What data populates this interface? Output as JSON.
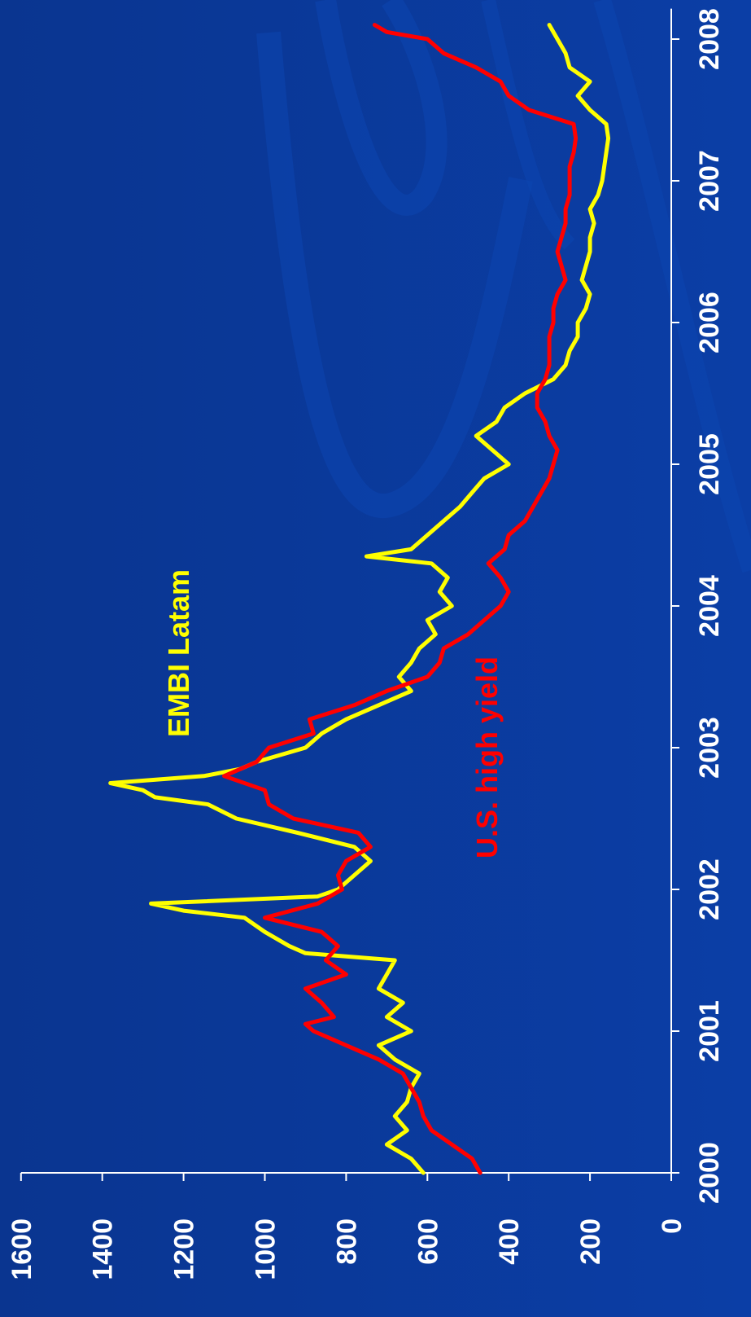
{
  "chart_data": {
    "type": "line",
    "x_ticks": [
      "2000",
      "2001",
      "2002",
      "2003",
      "2004",
      "2005",
      "2006",
      "2007",
      "2008"
    ],
    "y_ticks": [
      "0",
      "200",
      "400",
      "600",
      "800",
      "1000",
      "1200",
      "1400",
      "1600"
    ],
    "xlim": [
      2000,
      2008.1
    ],
    "ylim": [
      0,
      1600
    ],
    "grid": false,
    "orientation": "rotated-90-ccw",
    "colors": {
      "background": "#0b3a9a",
      "axis": "#ffffff",
      "embi": "#ffff00",
      "high_yield": "#ff0000"
    },
    "series": [
      {
        "name": "EMBI Latam",
        "color": "#ffff00",
        "x": [
          2000.0,
          2000.1,
          2000.2,
          2000.3,
          2000.4,
          2000.5,
          2000.6,
          2000.7,
          2000.8,
          2000.9,
          2001.0,
          2001.1,
          2001.2,
          2001.3,
          2001.4,
          2001.5,
          2001.55,
          2001.6,
          2001.7,
          2001.8,
          2001.85,
          2001.9,
          2001.95,
          2002.0,
          2002.1,
          2002.2,
          2002.3,
          2002.4,
          2002.5,
          2002.6,
          2002.65,
          2002.7,
          2002.75,
          2002.8,
          2002.85,
          2002.9,
          2003.0,
          2003.1,
          2003.2,
          2003.3,
          2003.4,
          2003.5,
          2003.6,
          2003.7,
          2003.8,
          2003.9,
          2004.0,
          2004.1,
          2004.2,
          2004.3,
          2004.35,
          2004.4,
          2004.5,
          2004.6,
          2004.7,
          2004.8,
          2004.9,
          2005.0,
          2005.1,
          2005.2,
          2005.3,
          2005.4,
          2005.5,
          2005.6,
          2005.7,
          2005.8,
          2005.9,
          2006.0,
          2006.1,
          2006.2,
          2006.3,
          2006.4,
          2006.5,
          2006.6,
          2006.7,
          2006.8,
          2006.9,
          2007.0,
          2007.1,
          2007.2,
          2007.3,
          2007.4,
          2007.5,
          2007.6,
          2007.7,
          2007.8,
          2007.9,
          2008.0,
          2008.1
        ],
        "values": [
          610,
          640,
          700,
          650,
          680,
          650,
          640,
          620,
          680,
          720,
          640,
          700,
          660,
          720,
          700,
          680,
          900,
          940,
          1000,
          1050,
          1200,
          1280,
          870,
          820,
          780,
          740,
          780,
          920,
          1070,
          1140,
          1270,
          1300,
          1380,
          1150,
          1060,
          1020,
          900,
          860,
          800,
          720,
          640,
          670,
          640,
          620,
          580,
          600,
          540,
          570,
          550,
          590,
          750,
          640,
          600,
          560,
          520,
          490,
          460,
          400,
          440,
          480,
          430,
          410,
          360,
          290,
          260,
          250,
          230,
          230,
          210,
          200,
          220,
          210,
          200,
          200,
          190,
          200,
          180,
          170,
          165,
          160,
          155,
          160,
          200,
          230,
          200,
          250,
          260,
          280,
          300
        ]
      },
      {
        "name": "U.S. high yield",
        "color": "#ff0000",
        "x": [
          2000.0,
          2000.1,
          2000.2,
          2000.3,
          2000.4,
          2000.5,
          2000.6,
          2000.7,
          2000.8,
          2000.9,
          2001.0,
          2001.05,
          2001.1,
          2001.2,
          2001.3,
          2001.4,
          2001.5,
          2001.6,
          2001.7,
          2001.8,
          2001.9,
          2002.0,
          2002.1,
          2002.2,
          2002.3,
          2002.4,
          2002.5,
          2002.6,
          2002.7,
          2002.8,
          2002.9,
          2003.0,
          2003.1,
          2003.2,
          2003.3,
          2003.4,
          2003.5,
          2003.6,
          2003.7,
          2003.8,
          2003.9,
          2004.0,
          2004.1,
          2004.2,
          2004.3,
          2004.4,
          2004.5,
          2004.6,
          2004.7,
          2004.8,
          2004.9,
          2005.0,
          2005.1,
          2005.2,
          2005.3,
          2005.4,
          2005.5,
          2005.6,
          2005.7,
          2005.8,
          2005.9,
          2006.0,
          2006.1,
          2006.2,
          2006.3,
          2006.4,
          2006.5,
          2006.6,
          2006.7,
          2006.8,
          2006.9,
          2007.0,
          2007.1,
          2007.2,
          2007.3,
          2007.4,
          2007.5,
          2007.6,
          2007.7,
          2007.8,
          2007.9,
          2008.0,
          2008.05,
          2008.1
        ],
        "values": [
          470,
          490,
          540,
          590,
          610,
          620,
          640,
          660,
          720,
          800,
          880,
          900,
          830,
          860,
          900,
          800,
          850,
          820,
          860,
          1000,
          870,
          810,
          820,
          800,
          740,
          770,
          930,
          990,
          1000,
          1100,
          1020,
          990,
          880,
          890,
          780,
          700,
          600,
          570,
          560,
          500,
          460,
          420,
          400,
          420,
          450,
          410,
          400,
          360,
          340,
          320,
          300,
          290,
          280,
          300,
          310,
          330,
          330,
          310,
          300,
          300,
          300,
          290,
          290,
          280,
          260,
          270,
          280,
          270,
          260,
          260,
          250,
          250,
          250,
          240,
          235,
          240,
          350,
          400,
          420,
          480,
          560,
          600,
          700,
          730
        ]
      }
    ],
    "annotations": [
      {
        "text": "EMBI Latam",
        "color": "#ffff00"
      },
      {
        "text": "U.S. high yield",
        "color": "#ff0000"
      }
    ]
  }
}
